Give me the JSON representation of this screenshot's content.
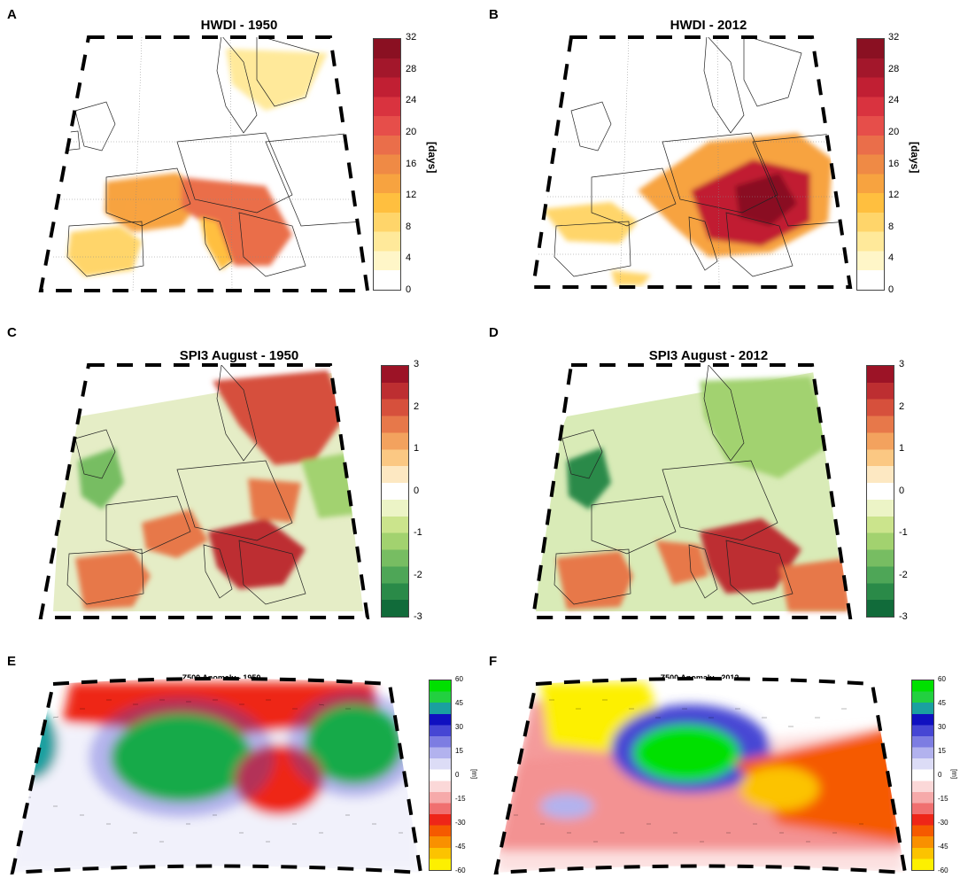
{
  "panels": {
    "A": {
      "letter": "A",
      "title": "HWDI - 1950"
    },
    "B": {
      "letter": "B",
      "title": "HWDI - 2012"
    },
    "C": {
      "letter": "C",
      "title": "SPI3 August - 1950"
    },
    "D": {
      "letter": "D",
      "title": "SPI3 August - 2012"
    },
    "E": {
      "letter": "E",
      "title": "Z500 Anomaly - 1950"
    },
    "F": {
      "letter": "F",
      "title": "Z500 Anomaly - 2012"
    }
  },
  "colorbars": {
    "hwdi": {
      "unit": "[days]",
      "ticks": [
        "32",
        "28",
        "24",
        "20",
        "16",
        "12",
        "8",
        "4",
        "0"
      ],
      "colors": [
        "#ffffff",
        "#fff6c8",
        "#ffe99a",
        "#ffd56a",
        "#ffbf3f",
        "#f7a340",
        "#ef8a45",
        "#ea6e4a",
        "#e64e4a",
        "#d9333f",
        "#c11f33",
        "#a3172b",
        "#8a1022"
      ]
    },
    "spi": {
      "unit": "",
      "ticks": [
        "3",
        "2",
        "1",
        "0",
        "-1",
        "-2",
        "-3"
      ],
      "colors": [
        "#116b3a",
        "#2a8a48",
        "#4ea657",
        "#77bd62",
        "#a2d26f",
        "#cbe48c",
        "#ecf4c6",
        "#ffffff",
        "#fde8c2",
        "#fbc883",
        "#f3a25e",
        "#e7784a",
        "#d6503c",
        "#bd2e31",
        "#9c1326"
      ]
    },
    "z500": {
      "unit": "[m]",
      "ticks": [
        "60",
        "45",
        "30",
        "15",
        "0",
        "-15",
        "-30",
        "-45",
        "-60"
      ],
      "colors": [
        "#fdf000",
        "#fcc300",
        "#f99000",
        "#f55a00",
        "#ee2618",
        "#f07070",
        "#f6aaaa",
        "#fbd8d8",
        "#ffffff",
        "#dcdcf6",
        "#b2b2ee",
        "#7d7de2",
        "#4646d4",
        "#1010c0",
        "#1aa0a0",
        "#22d040",
        "#00e000"
      ]
    }
  },
  "map_fields": {
    "A": [
      {
        "name": "iberia",
        "color": "#ffd56a"
      },
      {
        "name": "france",
        "color": "#f7a340"
      },
      {
        "name": "alps-balkans",
        "color": "#ea6e4a"
      },
      {
        "name": "scandinavia",
        "color": "#ffe99a"
      },
      {
        "name": "italy",
        "color": "#ffbf3f"
      }
    ],
    "B": [
      {
        "name": "central-europe",
        "color": "#f7a340"
      },
      {
        "name": "hungary-romania",
        "color": "#c11f33"
      },
      {
        "name": "core",
        "color": "#8a1022"
      },
      {
        "name": "iberia-patch",
        "color": "#ffd56a"
      }
    ],
    "C": [
      {
        "name": "scandinavia-dry",
        "color": "#d6503c"
      },
      {
        "name": "balkans-dry",
        "color": "#bd2e31"
      },
      {
        "name": "iberia-dry",
        "color": "#e7784a"
      },
      {
        "name": "britain-wet",
        "color": "#77bd62"
      },
      {
        "name": "east-wet",
        "color": "#a2d26f"
      }
    ],
    "D": [
      {
        "name": "north-wet",
        "color": "#a2d26f"
      },
      {
        "name": "britain-wet",
        "color": "#2a8a48"
      },
      {
        "name": "balkans-dry",
        "color": "#bd2e31"
      },
      {
        "name": "turkey-dry",
        "color": "#e7784a"
      },
      {
        "name": "iberia-dry",
        "color": "#e7784a"
      }
    ],
    "E": [
      {
        "name": "north-ridge",
        "color": "#ee2618"
      },
      {
        "name": "atlantic-low",
        "color": "#00e000"
      },
      {
        "name": "siberia-low",
        "color": "#00e000"
      },
      {
        "name": "central-high",
        "color": "#ee2618"
      },
      {
        "name": "west-low",
        "color": "#1aa0a0"
      }
    ],
    "F": [
      {
        "name": "greenland-high",
        "color": "#fdf000"
      },
      {
        "name": "atlantic-low",
        "color": "#00e000"
      },
      {
        "name": "europe-high",
        "color": "#f55a00"
      },
      {
        "name": "europe-core",
        "color": "#fcc300"
      }
    ]
  }
}
